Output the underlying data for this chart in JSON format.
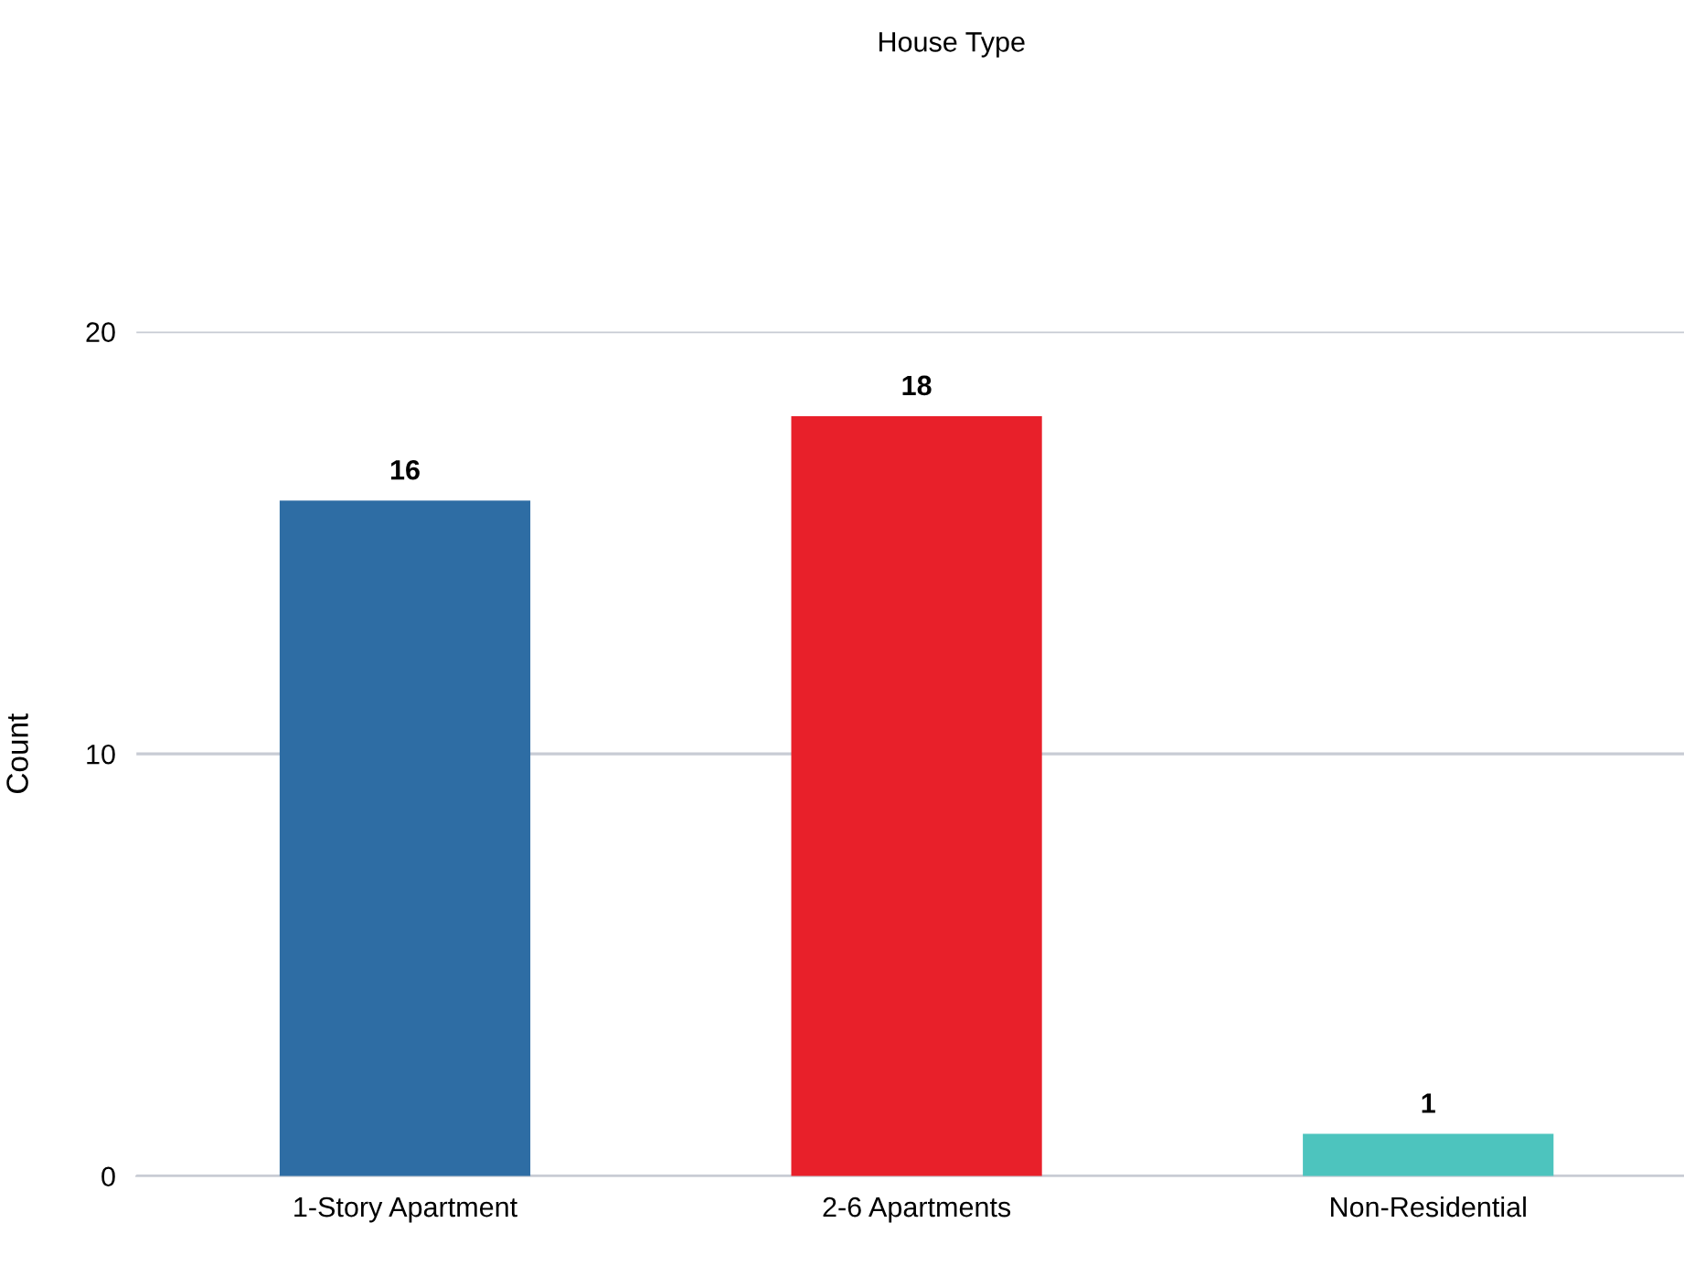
{
  "chart_data": {
    "type": "bar",
    "title": "House Type",
    "ylabel": "Count",
    "categories": [
      "1-Story Apartment",
      "2-6 Apartments",
      "Non-Residential"
    ],
    "values": [
      16,
      18,
      1
    ],
    "colors": [
      "#2e6da4",
      "#e8202a",
      "#4dc4be"
    ],
    "ylim": [
      0,
      20
    ],
    "yticks": [
      0,
      10,
      20
    ],
    "grid": "y",
    "data_labels": true,
    "legend": false
  }
}
